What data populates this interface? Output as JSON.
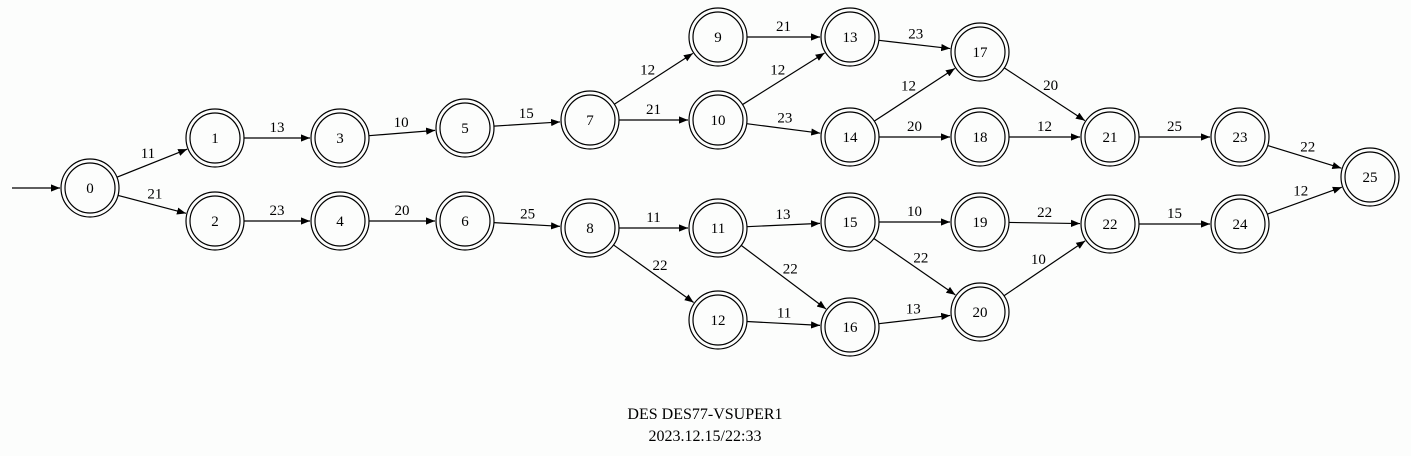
{
  "diagram": {
    "title": "DES DES77-VSUPER1",
    "timestamp": "2023.12.15/22:33",
    "initial_state": "0",
    "states": [
      "0",
      "1",
      "2",
      "3",
      "4",
      "5",
      "6",
      "7",
      "8",
      "9",
      "10",
      "11",
      "12",
      "13",
      "14",
      "15",
      "16",
      "17",
      "18",
      "19",
      "20",
      "21",
      "22",
      "23",
      "24",
      "25"
    ],
    "transitions": [
      {
        "from": "0",
        "to": "1",
        "label": "11"
      },
      {
        "from": "0",
        "to": "2",
        "label": "21"
      },
      {
        "from": "1",
        "to": "3",
        "label": "13"
      },
      {
        "from": "2",
        "to": "4",
        "label": "23"
      },
      {
        "from": "3",
        "to": "5",
        "label": "10"
      },
      {
        "from": "4",
        "to": "6",
        "label": "20"
      },
      {
        "from": "5",
        "to": "7",
        "label": "15"
      },
      {
        "from": "6",
        "to": "8",
        "label": "25"
      },
      {
        "from": "7",
        "to": "9",
        "label": "12"
      },
      {
        "from": "7",
        "to": "10",
        "label": "21"
      },
      {
        "from": "8",
        "to": "11",
        "label": "11"
      },
      {
        "from": "8",
        "to": "12",
        "label": "22"
      },
      {
        "from": "9",
        "to": "13",
        "label": "21"
      },
      {
        "from": "10",
        "to": "13",
        "label": "12"
      },
      {
        "from": "10",
        "to": "14",
        "label": "23"
      },
      {
        "from": "11",
        "to": "15",
        "label": "13"
      },
      {
        "from": "11",
        "to": "16",
        "label": "22"
      },
      {
        "from": "12",
        "to": "16",
        "label": "11"
      },
      {
        "from": "13",
        "to": "17",
        "label": "23"
      },
      {
        "from": "14",
        "to": "17",
        "label": "12"
      },
      {
        "from": "14",
        "to": "18",
        "label": "20"
      },
      {
        "from": "15",
        "to": "19",
        "label": "10"
      },
      {
        "from": "15",
        "to": "20",
        "label": "22"
      },
      {
        "from": "16",
        "to": "20",
        "label": "13"
      },
      {
        "from": "17",
        "to": "21",
        "label": "20"
      },
      {
        "from": "18",
        "to": "21",
        "label": "12"
      },
      {
        "from": "19",
        "to": "22",
        "label": "22"
      },
      {
        "from": "20",
        "to": "22",
        "label": "10"
      },
      {
        "from": "21",
        "to": "23",
        "label": "25"
      },
      {
        "from": "22",
        "to": "24",
        "label": "15"
      },
      {
        "from": "23",
        "to": "25",
        "label": "22"
      },
      {
        "from": "24",
        "to": "25",
        "label": "12"
      }
    ]
  }
}
